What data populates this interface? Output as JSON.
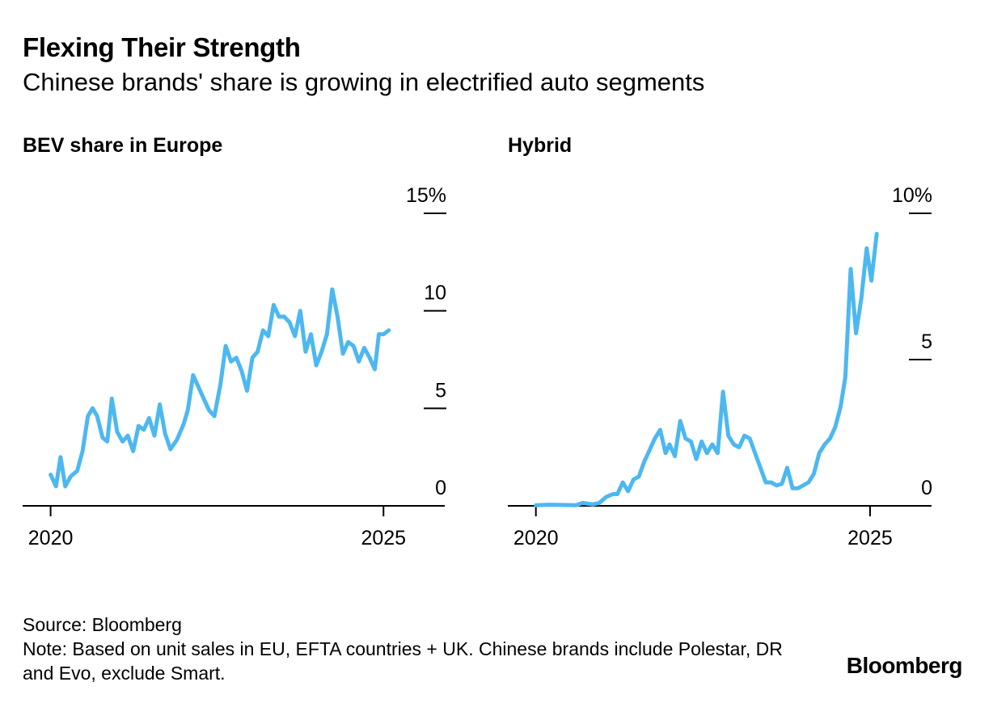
{
  "header": {
    "title": "Flexing Their Strength",
    "subtitle": "Chinese brands' share is growing in electrified auto segments"
  },
  "footer": {
    "source": "Source: Bloomberg",
    "note": "Note: Based on unit sales in EU, EFTA countries + UK. Chinese brands include Polestar, DR and Evo, exclude Smart.",
    "brand": "Bloomberg"
  },
  "colors": {
    "line": "#4db8f0",
    "axis": "#000000"
  },
  "chart_data": [
    {
      "type": "line",
      "title": "BEV share in Europe",
      "xlabel": "",
      "ylabel": "",
      "xlim": [
        2019.58,
        2025.92
      ],
      "ylim": [
        0,
        15
      ],
      "x_ticks": [
        {
          "value": 2020,
          "label": "2020"
        },
        {
          "value": 2025,
          "label": "2025"
        }
      ],
      "y_ticks": [
        {
          "value": 0,
          "label": "0"
        },
        {
          "value": 5,
          "label": "5"
        },
        {
          "value": 10,
          "label": "10"
        },
        {
          "value": 15,
          "label": "15%"
        }
      ],
      "grid": false,
      "series": [
        {
          "values": [
            [
              2020.0,
              1.6
            ],
            [
              2020.08,
              1.0
            ],
            [
              2020.15,
              2.5
            ],
            [
              2020.22,
              1.0
            ],
            [
              2020.3,
              1.5
            ],
            [
              2020.4,
              1.8
            ],
            [
              2020.48,
              2.8
            ],
            [
              2020.56,
              4.6
            ],
            [
              2020.63,
              5.0
            ],
            [
              2020.7,
              4.6
            ],
            [
              2020.78,
              3.5
            ],
            [
              2020.85,
              3.3
            ],
            [
              2020.92,
              5.5
            ],
            [
              2021.0,
              3.8
            ],
            [
              2021.08,
              3.3
            ],
            [
              2021.16,
              3.6
            ],
            [
              2021.24,
              2.8
            ],
            [
              2021.32,
              4.1
            ],
            [
              2021.4,
              3.9
            ],
            [
              2021.48,
              4.5
            ],
            [
              2021.56,
              3.6
            ],
            [
              2021.64,
              5.2
            ],
            [
              2021.72,
              3.7
            ],
            [
              2021.8,
              2.9
            ],
            [
              2021.9,
              3.4
            ],
            [
              2022.0,
              4.2
            ],
            [
              2022.06,
              4.9
            ],
            [
              2022.14,
              6.7
            ],
            [
              2022.22,
              6.1
            ],
            [
              2022.3,
              5.5
            ],
            [
              2022.38,
              4.9
            ],
            [
              2022.46,
              4.6
            ],
            [
              2022.55,
              6.2
            ],
            [
              2022.63,
              8.2
            ],
            [
              2022.71,
              7.4
            ],
            [
              2022.79,
              7.6
            ],
            [
              2022.87,
              6.9
            ],
            [
              2022.95,
              5.9
            ],
            [
              2023.03,
              7.6
            ],
            [
              2023.11,
              7.9
            ],
            [
              2023.19,
              9.0
            ],
            [
              2023.27,
              8.7
            ],
            [
              2023.35,
              10.3
            ],
            [
              2023.43,
              9.7
            ],
            [
              2023.51,
              9.7
            ],
            [
              2023.59,
              9.4
            ],
            [
              2023.67,
              8.7
            ],
            [
              2023.75,
              10.0
            ],
            [
              2023.83,
              7.9
            ],
            [
              2023.91,
              8.8
            ],
            [
              2023.99,
              7.2
            ],
            [
              2024.07,
              7.9
            ],
            [
              2024.15,
              8.8
            ],
            [
              2024.23,
              11.1
            ],
            [
              2024.31,
              9.7
            ],
            [
              2024.39,
              7.8
            ],
            [
              2024.47,
              8.4
            ],
            [
              2024.55,
              8.2
            ],
            [
              2024.63,
              7.4
            ],
            [
              2024.71,
              8.1
            ],
            [
              2024.79,
              7.6
            ],
            [
              2024.87,
              7.0
            ],
            [
              2024.93,
              8.8
            ],
            [
              2025.0,
              8.8
            ],
            [
              2025.08,
              9.0
            ]
          ]
        }
      ]
    },
    {
      "type": "line",
      "title": "Hybrid",
      "xlabel": "",
      "ylabel": "",
      "xlim": [
        2019.58,
        2025.92
      ],
      "ylim": [
        0,
        10
      ],
      "x_ticks": [
        {
          "value": 2020,
          "label": "2020"
        },
        {
          "value": 2025,
          "label": "2025"
        }
      ],
      "y_ticks": [
        {
          "value": 0,
          "label": "0"
        },
        {
          "value": 5,
          "label": "5"
        },
        {
          "value": 10,
          "label": "10%"
        }
      ],
      "grid": false,
      "series": [
        {
          "values": [
            [
              2020.0,
              0.02
            ],
            [
              2020.2,
              0.04
            ],
            [
              2020.4,
              0.03
            ],
            [
              2020.6,
              0.02
            ],
            [
              2020.7,
              0.1
            ],
            [
              2020.85,
              0.05
            ],
            [
              2020.95,
              0.1
            ],
            [
              2021.05,
              0.3
            ],
            [
              2021.15,
              0.4
            ],
            [
              2021.22,
              0.4
            ],
            [
              2021.3,
              0.8
            ],
            [
              2021.38,
              0.5
            ],
            [
              2021.46,
              0.9
            ],
            [
              2021.54,
              1.0
            ],
            [
              2021.62,
              1.5
            ],
            [
              2021.7,
              1.9
            ],
            [
              2021.78,
              2.3
            ],
            [
              2021.86,
              2.6
            ],
            [
              2021.94,
              1.8
            ],
            [
              2022.0,
              2.1
            ],
            [
              2022.08,
              1.7
            ],
            [
              2022.16,
              2.9
            ],
            [
              2022.24,
              2.3
            ],
            [
              2022.32,
              2.2
            ],
            [
              2022.4,
              1.6
            ],
            [
              2022.48,
              2.2
            ],
            [
              2022.56,
              1.8
            ],
            [
              2022.64,
              2.1
            ],
            [
              2022.72,
              1.8
            ],
            [
              2022.8,
              3.9
            ],
            [
              2022.88,
              2.4
            ],
            [
              2022.96,
              2.1
            ],
            [
              2023.04,
              2.0
            ],
            [
              2023.12,
              2.4
            ],
            [
              2023.2,
              2.3
            ],
            [
              2023.28,
              1.8
            ],
            [
              2023.36,
              1.3
            ],
            [
              2023.44,
              0.8
            ],
            [
              2023.52,
              0.8
            ],
            [
              2023.6,
              0.7
            ],
            [
              2023.68,
              0.75
            ],
            [
              2023.76,
              1.3
            ],
            [
              2023.84,
              0.6
            ],
            [
              2023.92,
              0.6
            ],
            [
              2024.0,
              0.7
            ],
            [
              2024.08,
              0.8
            ],
            [
              2024.16,
              1.1
            ],
            [
              2024.24,
              1.8
            ],
            [
              2024.32,
              2.1
            ],
            [
              2024.4,
              2.3
            ],
            [
              2024.48,
              2.7
            ],
            [
              2024.56,
              3.4
            ],
            [
              2024.63,
              4.4
            ],
            [
              2024.71,
              8.1
            ],
            [
              2024.79,
              5.9
            ],
            [
              2024.87,
              7.1
            ],
            [
              2024.95,
              8.8
            ],
            [
              2025.02,
              7.7
            ],
            [
              2025.1,
              9.3
            ]
          ]
        }
      ]
    }
  ]
}
